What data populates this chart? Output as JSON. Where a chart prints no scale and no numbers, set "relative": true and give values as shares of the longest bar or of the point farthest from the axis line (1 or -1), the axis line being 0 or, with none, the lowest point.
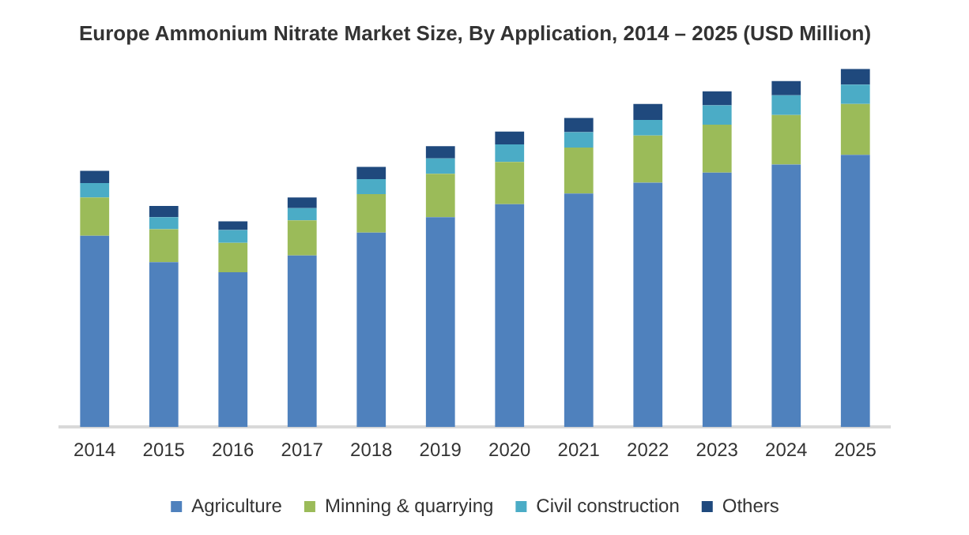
{
  "chart_data": {
    "type": "bar",
    "title": "Europe Ammonium Nitrate Market Size, By Application, 2014 – 2025 (USD Million)",
    "categories": [
      "2014",
      "2015",
      "2016",
      "2017",
      "2018",
      "2019",
      "2020",
      "2021",
      "2022",
      "2023",
      "2024",
      "2025"
    ],
    "stacked": true,
    "relative": true,
    "legend": "bottom",
    "grid": false,
    "series": [
      {
        "name": "Agriculture",
        "color": "#4f81bd",
        "values": [
          0.534,
          0.46,
          0.432,
          0.479,
          0.543,
          0.586,
          0.622,
          0.652,
          0.682,
          0.71,
          0.733,
          0.76
        ]
      },
      {
        "name": "Minning & quarrying",
        "color": "#9bbb59",
        "values": [
          0.107,
          0.092,
          0.082,
          0.098,
          0.107,
          0.121,
          0.118,
          0.128,
          0.132,
          0.134,
          0.138,
          0.142
        ]
      },
      {
        "name": "Civil construction",
        "color": "#4bacc6",
        "values": [
          0.04,
          0.034,
          0.036,
          0.034,
          0.042,
          0.043,
          0.049,
          0.043,
          0.043,
          0.054,
          0.055,
          0.054
        ]
      },
      {
        "name": "Others",
        "color": "#1f497d",
        "values": [
          0.034,
          0.031,
          0.024,
          0.03,
          0.034,
          0.034,
          0.036,
          0.04,
          0.045,
          0.039,
          0.04,
          0.044
        ]
      }
    ]
  }
}
